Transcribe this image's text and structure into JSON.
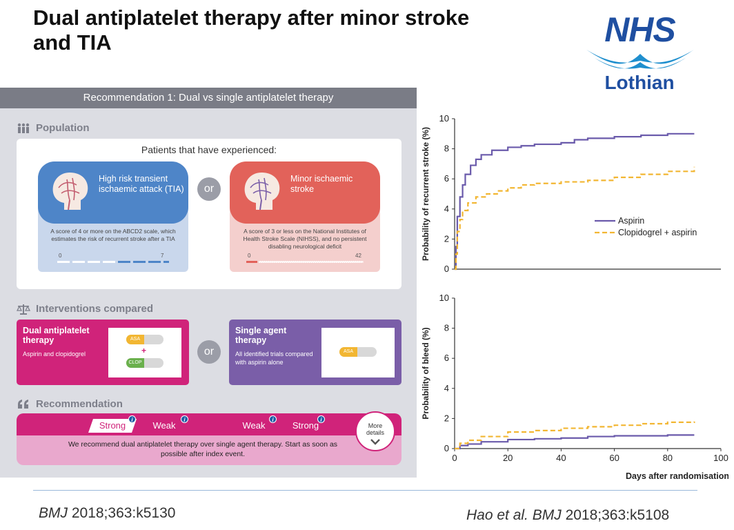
{
  "title": "Dual antiplatelet therapy after minor stroke and TIA",
  "logo": {
    "primary": "NHS",
    "region": "Lothian"
  },
  "infographic": {
    "header": "Recommendation 1: Dual vs single antiplatelet therapy",
    "population": {
      "label": "Population",
      "subtitle": "Patients that have experienced:",
      "or": "or",
      "tia": {
        "title": "High risk transient ischaemic attack (TIA)",
        "desc": "A score of 4 or more on the ABCD2 scale, which estimates the risk of recurrent stroke after a TIA",
        "min": "0",
        "max": "7"
      },
      "stroke": {
        "title": "Minor ischaemic stroke",
        "desc": "A score of 3 or less on the National Institutes of Health Stroke Scale (NIHSS), and no persistent disabling neurological deficit",
        "min": "0",
        "max": "42"
      }
    },
    "interventions": {
      "label": "Interventions compared",
      "or": "or",
      "dual": {
        "title": "Dual antiplatelet therapy",
        "desc": "Aspirin and clopidogrel",
        "pill1": "ASA",
        "plus": "+",
        "pill2": "CLOP"
      },
      "single": {
        "title": "Single agent therapy",
        "desc": "All identified trials compared with aspirin alone",
        "pill1": "ASA"
      }
    },
    "recommendation": {
      "label": "Recommendation",
      "tags": [
        "Strong",
        "Weak",
        "Weak",
        "Strong"
      ],
      "info": "i",
      "text": "We recommend dual antiplatelet therapy over single agent therapy. Start as soon as possible after index event.",
      "more": "More details"
    }
  },
  "colors": {
    "aspirin": "#6a5aab",
    "dual": "#f2b632",
    "tia_blue": "#4e85c8",
    "stroke_red": "#e2625a",
    "magenta": "#d0237a",
    "purple": "#7a5ea8"
  },
  "chart_data": [
    {
      "type": "line",
      "ylabel": "Probability of recurrent stroke (%)",
      "xlabel": "",
      "xlim": [
        0,
        100
      ],
      "ylim": [
        0,
        10
      ],
      "yticks": [
        "0",
        "2",
        "4",
        "6",
        "8",
        "10"
      ],
      "legend": [
        "Aspirin",
        "Clopidogrel + aspirin"
      ],
      "series": [
        {
          "name": "Aspirin",
          "x": [
            0,
            0.5,
            1,
            2,
            3,
            4,
            6,
            8,
            10,
            14,
            20,
            25,
            30,
            40,
            45,
            50,
            60,
            70,
            80,
            90
          ],
          "y": [
            0,
            1.5,
            3.5,
            4.8,
            5.6,
            6.3,
            6.9,
            7.3,
            7.6,
            7.9,
            8.1,
            8.2,
            8.3,
            8.4,
            8.6,
            8.7,
            8.8,
            8.9,
            9.0,
            9.0
          ]
        },
        {
          "name": "Clopidogrel + aspirin",
          "x": [
            0,
            0.5,
            1,
            2,
            3,
            5,
            8,
            12,
            16,
            20,
            25,
            30,
            40,
            50,
            60,
            70,
            80,
            90
          ],
          "y": [
            0,
            1.0,
            2.5,
            3.3,
            3.9,
            4.4,
            4.8,
            5.0,
            5.2,
            5.4,
            5.6,
            5.7,
            5.8,
            5.9,
            6.1,
            6.3,
            6.5,
            6.8
          ]
        }
      ]
    },
    {
      "type": "line",
      "ylabel": "Probability of bleed (%)",
      "xlabel": "Days after randomisation",
      "xlim": [
        0,
        100
      ],
      "ylim": [
        0,
        10
      ],
      "yticks": [
        "0",
        "2",
        "4",
        "6",
        "8",
        "10"
      ],
      "xticks": [
        "0",
        "20",
        "40",
        "60",
        "80",
        "100"
      ],
      "series": [
        {
          "name": "Aspirin",
          "x": [
            0,
            2,
            5,
            10,
            20,
            30,
            40,
            50,
            60,
            70,
            80,
            90
          ],
          "y": [
            0,
            0.2,
            0.3,
            0.45,
            0.6,
            0.65,
            0.7,
            0.8,
            0.85,
            0.85,
            0.9,
            0.9
          ]
        },
        {
          "name": "Clopidogrel + aspirin",
          "x": [
            0,
            2,
            5,
            10,
            20,
            30,
            40,
            50,
            60,
            70,
            80,
            90
          ],
          "y": [
            0,
            0.35,
            0.55,
            0.8,
            1.1,
            1.2,
            1.35,
            1.45,
            1.55,
            1.65,
            1.75,
            1.8
          ]
        }
      ]
    }
  ],
  "footer": {
    "left_journal": "BMJ",
    "left_cite": " 2018;363:k5130",
    "right_author": "Hao et al. BMJ",
    "right_cite": " 2018;363:k5108"
  }
}
